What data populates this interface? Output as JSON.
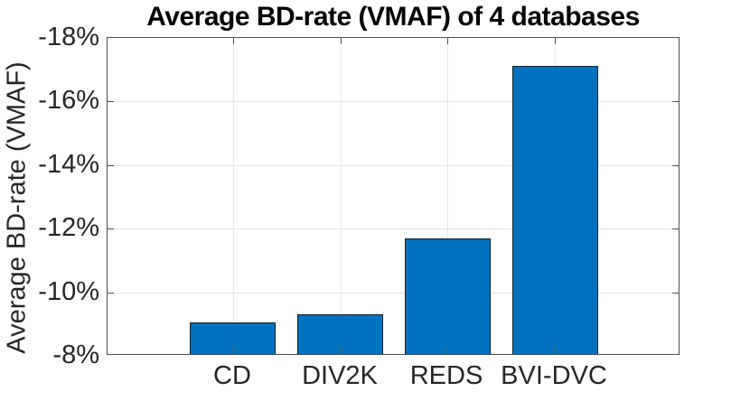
{
  "chart_data": {
    "type": "bar",
    "title": "Average BD-rate (VMAF) of 4 databases",
    "ylabel": "Average BD-rate (VMAF)",
    "xlabel": "",
    "categories": [
      "CD",
      "DIV2K",
      "REDS",
      "BVI-DVC"
    ],
    "values": [
      -9.0,
      -9.25,
      -11.65,
      -17.05
    ],
    "unit": "%",
    "y_axis_reversed": true,
    "ylim": [
      -8,
      -18
    ],
    "yticks": [
      -8,
      -10,
      -12,
      -14,
      -16,
      -18
    ],
    "ytick_labels": [
      "-8%",
      "-10%",
      "-12%",
      "-14%",
      "-16%",
      "-18%"
    ],
    "xlim": [
      -0.17,
      5.17
    ],
    "bar_width_units": 0.8,
    "grid": "both",
    "legend": "none",
    "colors": {
      "bar_fill": "#0072BD",
      "bar_edge": "#1a1a1a",
      "grid_line": "#e5e5e5",
      "axis_box": "#4f4f4f",
      "tick_text": "#262626",
      "title_text": "#000000"
    }
  }
}
